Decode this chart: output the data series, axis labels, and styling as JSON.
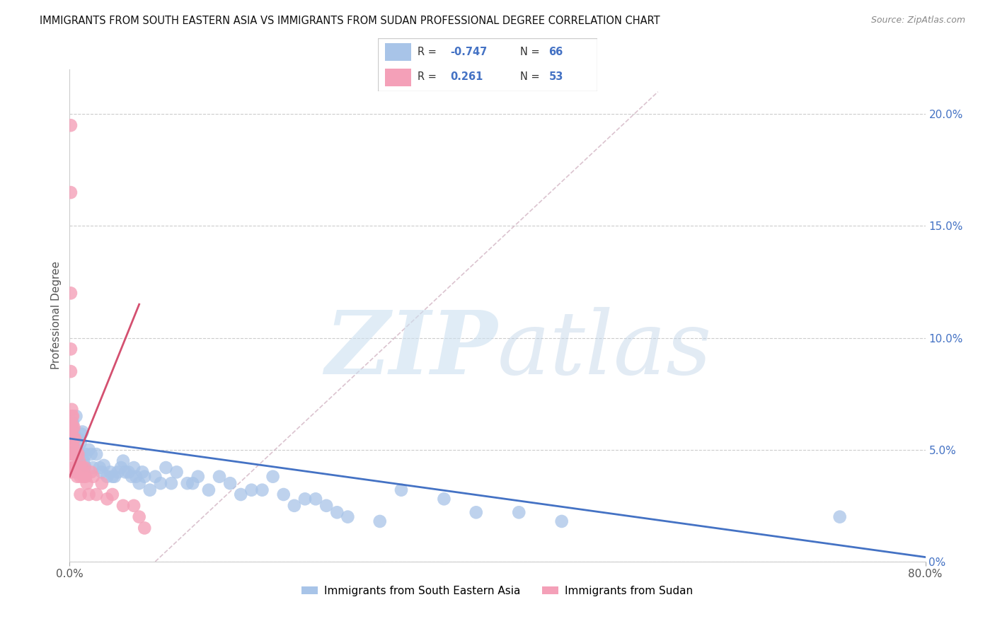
{
  "title": "IMMIGRANTS FROM SOUTH EASTERN ASIA VS IMMIGRANTS FROM SUDAN PROFESSIONAL DEGREE CORRELATION CHART",
  "source": "Source: ZipAtlas.com",
  "ylabel": "Professional Degree",
  "right_yticks": [
    "0%",
    "5.0%",
    "10.0%",
    "15.0%",
    "20.0%"
  ],
  "right_ytick_vals": [
    0.0,
    0.05,
    0.1,
    0.15,
    0.2
  ],
  "xlim": [
    0.0,
    0.8
  ],
  "ylim": [
    0.0,
    0.22
  ],
  "legend_blue_r": "-0.747",
  "legend_blue_n": "66",
  "legend_pink_r": "0.261",
  "legend_pink_n": "53",
  "blue_scatter_color": "#a8c4e8",
  "pink_scatter_color": "#f4a0b8",
  "blue_line_color": "#4472c4",
  "pink_line_color": "#d45070",
  "watermark_zip_color": "#cce0f0",
  "watermark_atlas_color": "#c0d4e8",
  "legend_label_blue": "Immigrants from South Eastern Asia",
  "legend_label_pink": "Immigrants from Sudan",
  "blue_points_x": [
    0.002,
    0.003,
    0.004,
    0.005,
    0.006,
    0.007,
    0.008,
    0.009,
    0.01,
    0.011,
    0.012,
    0.013,
    0.014,
    0.015,
    0.018,
    0.02,
    0.022,
    0.025,
    0.028,
    0.03,
    0.032,
    0.035,
    0.038,
    0.04,
    0.042,
    0.045,
    0.048,
    0.05,
    0.052,
    0.055,
    0.058,
    0.06,
    0.062,
    0.065,
    0.068,
    0.07,
    0.075,
    0.08,
    0.085,
    0.09,
    0.095,
    0.1,
    0.11,
    0.115,
    0.12,
    0.13,
    0.14,
    0.15,
    0.16,
    0.17,
    0.18,
    0.19,
    0.2,
    0.21,
    0.22,
    0.23,
    0.24,
    0.25,
    0.26,
    0.29,
    0.31,
    0.35,
    0.38,
    0.42,
    0.46,
    0.72
  ],
  "blue_points_y": [
    0.06,
    0.062,
    0.058,
    0.055,
    0.065,
    0.05,
    0.055,
    0.048,
    0.053,
    0.057,
    0.058,
    0.045,
    0.043,
    0.048,
    0.05,
    0.048,
    0.042,
    0.048,
    0.042,
    0.04,
    0.043,
    0.038,
    0.04,
    0.038,
    0.038,
    0.04,
    0.042,
    0.045,
    0.04,
    0.04,
    0.038,
    0.042,
    0.038,
    0.035,
    0.04,
    0.038,
    0.032,
    0.038,
    0.035,
    0.042,
    0.035,
    0.04,
    0.035,
    0.035,
    0.038,
    0.032,
    0.038,
    0.035,
    0.03,
    0.032,
    0.032,
    0.038,
    0.03,
    0.025,
    0.028,
    0.028,
    0.025,
    0.022,
    0.02,
    0.018,
    0.032,
    0.028,
    0.022,
    0.022,
    0.018,
    0.02
  ],
  "pink_points_x": [
    0.001,
    0.001,
    0.001,
    0.001,
    0.001,
    0.001,
    0.001,
    0.001,
    0.002,
    0.002,
    0.002,
    0.002,
    0.002,
    0.002,
    0.002,
    0.003,
    0.003,
    0.003,
    0.003,
    0.003,
    0.004,
    0.004,
    0.004,
    0.004,
    0.005,
    0.005,
    0.005,
    0.006,
    0.006,
    0.007,
    0.007,
    0.008,
    0.008,
    0.009,
    0.01,
    0.01,
    0.01,
    0.012,
    0.013,
    0.014,
    0.015,
    0.016,
    0.018,
    0.02,
    0.022,
    0.025,
    0.03,
    0.035,
    0.04,
    0.05,
    0.06,
    0.065,
    0.07
  ],
  "pink_points_y": [
    0.195,
    0.165,
    0.12,
    0.095,
    0.085,
    0.055,
    0.048,
    0.04,
    0.068,
    0.065,
    0.062,
    0.058,
    0.052,
    0.048,
    0.042,
    0.065,
    0.06,
    0.052,
    0.048,
    0.042,
    0.06,
    0.055,
    0.048,
    0.042,
    0.055,
    0.048,
    0.04,
    0.05,
    0.042,
    0.048,
    0.038,
    0.048,
    0.04,
    0.045,
    0.042,
    0.038,
    0.03,
    0.042,
    0.038,
    0.042,
    0.038,
    0.035,
    0.03,
    0.04,
    0.038,
    0.03,
    0.035,
    0.028,
    0.03,
    0.025,
    0.025,
    0.02,
    0.015
  ],
  "blue_trend_x": [
    0.0,
    0.8
  ],
  "blue_trend_y": [
    0.055,
    0.002
  ],
  "pink_trend_x": [
    0.0,
    0.065
  ],
  "pink_trend_y": [
    0.038,
    0.115
  ],
  "diag_trend_x": [
    0.08,
    0.55
  ],
  "diag_trend_y": [
    0.0,
    0.21
  ]
}
